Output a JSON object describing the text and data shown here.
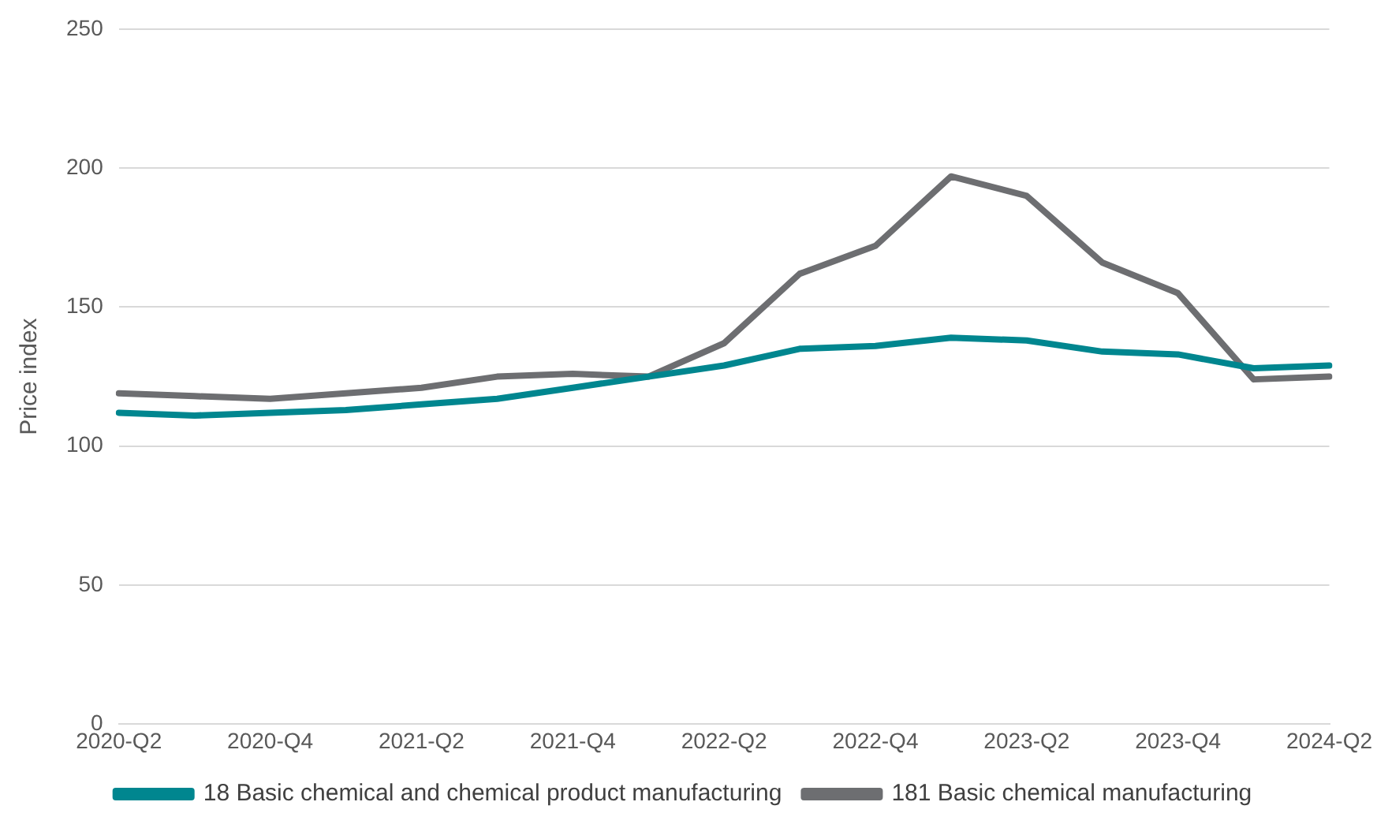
{
  "chart_data": {
    "type": "line",
    "ylabel": "Price index",
    "categories": [
      "2020-Q2",
      null,
      "2020-Q4",
      null,
      "2021-Q2",
      null,
      "2021-Q4",
      null,
      "2022-Q2",
      null,
      "2022-Q4",
      null,
      "2023-Q2",
      null,
      "2023-Q4",
      null,
      "2024-Q2"
    ],
    "series": [
      {
        "name": "18 Basic chemical and chemical product manufacturing",
        "color": "#00868f",
        "values": [
          112,
          111,
          112,
          113,
          115,
          117,
          121,
          125,
          129,
          135,
          136,
          139,
          138,
          134,
          133,
          128,
          129
        ]
      },
      {
        "name": "181 Basic chemical manufacturing",
        "color": "#6d6e71",
        "values": [
          119,
          118,
          117,
          119,
          121,
          125,
          126,
          125,
          137,
          162,
          172,
          197,
          190,
          166,
          155,
          124,
          125
        ]
      }
    ],
    "ylim": [
      0,
      250
    ],
    "yticks": [
      0,
      50,
      100,
      150,
      200,
      250
    ],
    "grid": "y",
    "legend": "bottom",
    "marker": "none",
    "line_style": "solid"
  }
}
